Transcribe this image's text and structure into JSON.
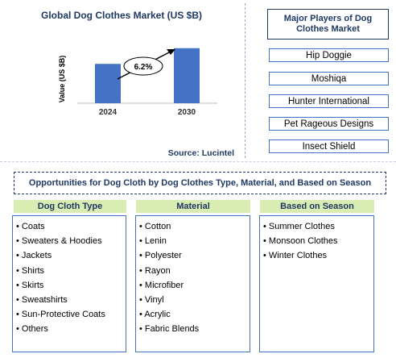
{
  "chart_data": {
    "type": "bar",
    "title": "Global Dog Clothes Market (US $B)",
    "ylabel": "Value (US $B)",
    "xlabel": "",
    "categories": [
      "2024",
      "2030"
    ],
    "values": [
      1.0,
      1.4
    ],
    "ylim": [
      0,
      1.6
    ],
    "bar_color": "#4472c4",
    "annotation": {
      "text": "6.2%",
      "from": "2024",
      "to": "2030"
    },
    "source": "Source: Lucintel"
  },
  "players": {
    "title": "Major Players of Dog Clothes Market",
    "items": [
      "Hip Doggie",
      "Moshiqa",
      "Hunter International",
      "Pet Rageous Designs",
      "Insect Shield"
    ]
  },
  "opportunities": {
    "title": "Opportunities for Dog Cloth by Dog Clothes Type, Material, and Based on Season",
    "columns": [
      {
        "header": "Dog Cloth Type",
        "items": [
          "Coats",
          "Sweaters & Hoodies",
          "Jackets",
          "Shirts",
          "Skirts",
          "Sweatshirts",
          "Sun-Protective Coats",
          "Others"
        ]
      },
      {
        "header": "Material",
        "items": [
          "Cotton",
          "Lenin",
          "Polyester",
          "Rayon",
          "Microfiber",
          "Vinyl",
          "Acrylic",
          "Fabric Blends"
        ]
      },
      {
        "header": "Based on Season",
        "items": [
          "Summer Clothes",
          "Monsoon Clothes",
          "Winter Clothes"
        ]
      }
    ]
  },
  "colors": {
    "accent": "#4472c4",
    "title": "#1f3864",
    "header_bg": "#d9ecb2"
  }
}
